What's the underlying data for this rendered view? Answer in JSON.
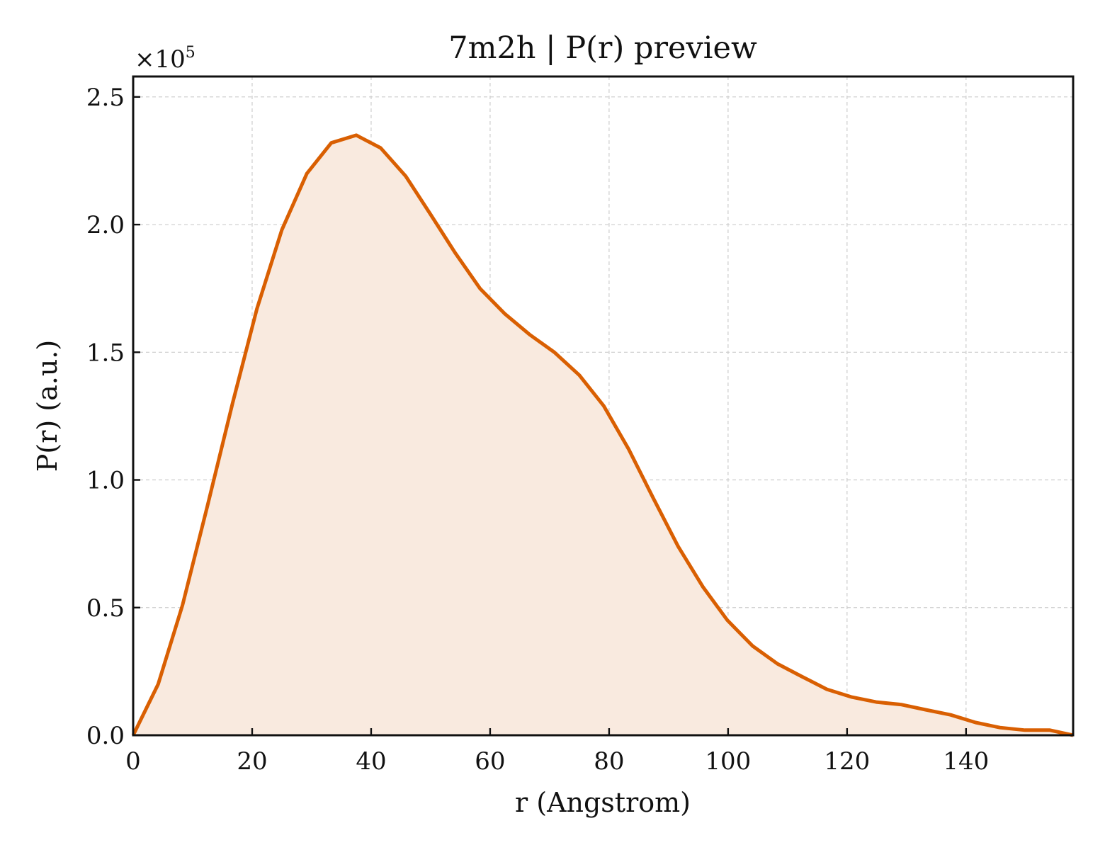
{
  "chart_data": {
    "type": "area",
    "title": "7m2h | P(r) preview",
    "xlabel": "r (Angstrom)",
    "ylabel": "P(r) (a.u.)",
    "y_offset_label": {
      "base": "×10",
      "exponent": "5"
    },
    "xlim": [
      0,
      158
    ],
    "ylim": [
      0,
      2.58
    ],
    "y_scale_factor": 100000,
    "x_ticks": [
      0,
      20,
      40,
      60,
      80,
      100,
      120,
      140
    ],
    "x_tick_labels": [
      "0",
      "20",
      "40",
      "60",
      "80",
      "100",
      "120",
      "140"
    ],
    "y_ticks": [
      0.0,
      0.5,
      1.0,
      1.5,
      2.0,
      2.5
    ],
    "y_tick_labels": [
      "0.0",
      "0.5",
      "1.0",
      "1.5",
      "2.0",
      "2.5"
    ],
    "grid": true,
    "line_color": "#d95f02",
    "fill_color": "#f9eadf",
    "series": [
      {
        "x": [
          0,
          4.2,
          8.3,
          12.5,
          16.7,
          20.8,
          25.0,
          29.2,
          33.3,
          37.5,
          41.6,
          45.8,
          50.0,
          54.1,
          58.3,
          62.5,
          66.6,
          70.8,
          75.0,
          79.1,
          83.3,
          87.4,
          91.6,
          95.8,
          99.9,
          104.1,
          108.3,
          112.4,
          116.6,
          120.7,
          124.9,
          129.1,
          133.2,
          137.4,
          141.6,
          145.7,
          149.9,
          154.1,
          158.0
        ],
        "y": [
          0.0,
          0.2,
          0.51,
          0.9,
          1.3,
          1.67,
          1.98,
          2.2,
          2.32,
          2.35,
          2.3,
          2.19,
          2.04,
          1.89,
          1.75,
          1.65,
          1.57,
          1.5,
          1.41,
          1.29,
          1.12,
          0.93,
          0.74,
          0.58,
          0.45,
          0.35,
          0.28,
          0.23,
          0.18,
          0.15,
          0.13,
          0.12,
          0.1,
          0.08,
          0.05,
          0.03,
          0.02,
          0.02,
          0.0
        ]
      }
    ]
  }
}
